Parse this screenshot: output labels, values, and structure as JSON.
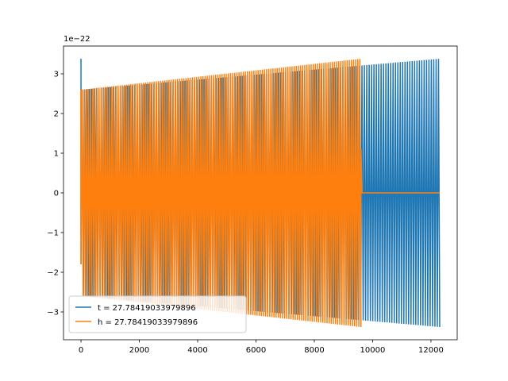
{
  "chart_data": {
    "type": "line",
    "title": "",
    "xlabel": "",
    "ylabel": "",
    "y_offset_label": "1e−22",
    "xlim": [
      -600,
      12900
    ],
    "ylim": [
      -3.7,
      3.7
    ],
    "xticks": [
      0,
      2000,
      4000,
      6000,
      8000,
      10000,
      12000
    ],
    "xtick_labels": [
      "0",
      "2000",
      "4000",
      "6000",
      "8000",
      "10000",
      "12000"
    ],
    "yticks": [
      -3,
      -2,
      -1,
      0,
      1,
      2,
      3
    ],
    "ytick_labels": [
      "−3",
      "−2",
      "−1",
      "0",
      "1",
      "2",
      "3"
    ],
    "grid": false,
    "legend_position": "lower-left",
    "series": [
      {
        "name": "t = 27.78419033979896",
        "color": "#1f77b4",
        "x_end": 12300,
        "n_cycles": 150,
        "amplitude_start": 2.6,
        "amplitude_end": 3.38,
        "initial_spike": 3.38,
        "phase_shift_x": 2750,
        "flat_after_x": null
      },
      {
        "name": "h = 27.78419033979896",
        "color": "#ff7f0e",
        "x_end": 9600,
        "n_cycles": 132,
        "amplitude_start": 2.6,
        "amplitude_end": 3.38,
        "initial_spike": 2.6,
        "phase_shift_x": 2750,
        "flat_after_x": 9600
      }
    ]
  }
}
